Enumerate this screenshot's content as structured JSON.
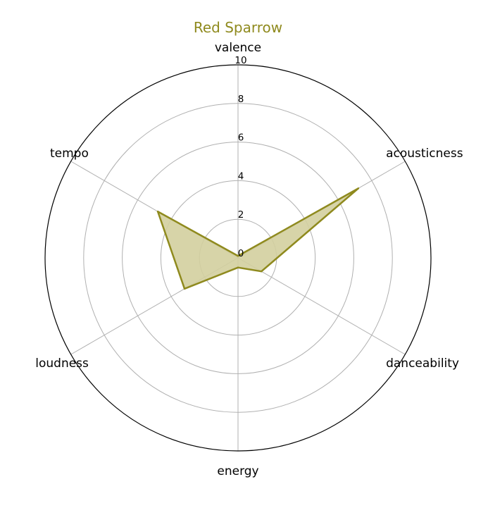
{
  "chart_data": {
    "type": "radar",
    "title": "Red Sparrow",
    "axes": [
      "valence",
      "acousticness",
      "danceability",
      "energy",
      "loudness",
      "tempo"
    ],
    "series": [
      {
        "values": [
          0.1,
          7.2,
          1.4,
          0.5,
          3.2,
          4.8
        ]
      }
    ],
    "rlim": [
      0,
      10
    ],
    "rticks": [
      0,
      2,
      4,
      6,
      8,
      10
    ],
    "grid": true,
    "colors": {
      "stroke": "#8f8a1e",
      "fill": "#d3cf9f",
      "title": "#8f8a1e"
    }
  }
}
